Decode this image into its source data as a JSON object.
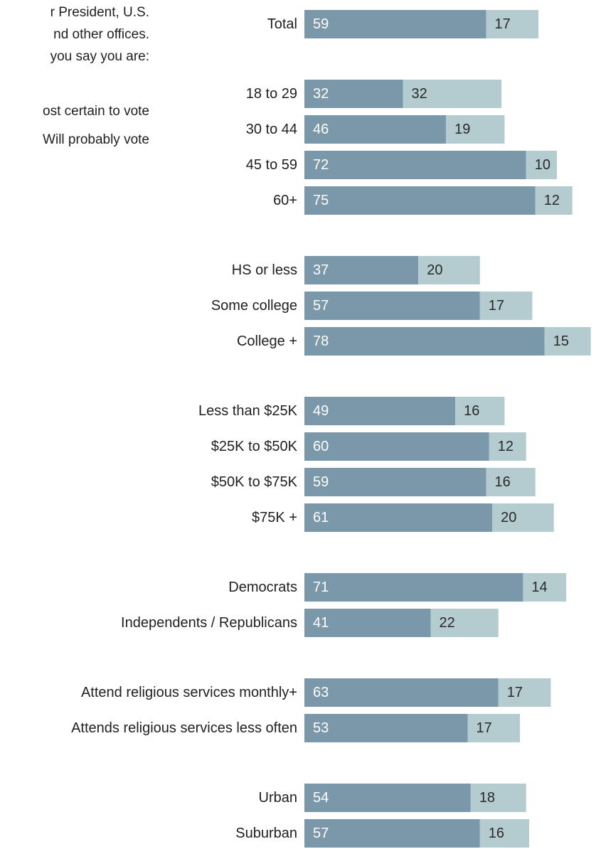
{
  "intro": {
    "lines": [
      "r President, U.S.",
      "nd other offices.",
      "you say you are:"
    ]
  },
  "legend": {
    "items": [
      {
        "label": "ost certain to vote",
        "color": "#7a98a9"
      },
      {
        "label": "Will probably vote",
        "color": "#b4cbcf"
      }
    ]
  },
  "chart_data": {
    "type": "bar",
    "orientation": "horizontal",
    "stacked": true,
    "categories": [
      "Total",
      "18 to 29",
      "30 to 44",
      "45 to 59",
      "60+",
      "HS or less",
      "Some college",
      "College +",
      "Less than $25K",
      "$25K to $50K",
      "$50K to $75K",
      "$75K +",
      "Democrats",
      "Independents / Republicans",
      "Attend religious services monthly+",
      "Attends religious services less often",
      "Urban",
      "Suburban"
    ],
    "groups": [
      1,
      2,
      2,
      2,
      2,
      3,
      3,
      3,
      4,
      4,
      4,
      4,
      5,
      5,
      6,
      6,
      7,
      7
    ],
    "series": [
      {
        "values": [
          59,
          32,
          46,
          72,
          75,
          37,
          57,
          78,
          49,
          60,
          59,
          61,
          71,
          41,
          63,
          53,
          54,
          57
        ],
        "color": "#7a98a9",
        "label_color": "#ffffff"
      },
      {
        "values": [
          17,
          32,
          19,
          10,
          12,
          20,
          17,
          15,
          16,
          12,
          16,
          20,
          14,
          22,
          17,
          17,
          18,
          16
        ],
        "color": "#b4cbcf",
        "label_color": "#2a2a2a"
      }
    ],
    "xlim": [
      0,
      100
    ],
    "grid": false,
    "legend_position": "top-left"
  }
}
